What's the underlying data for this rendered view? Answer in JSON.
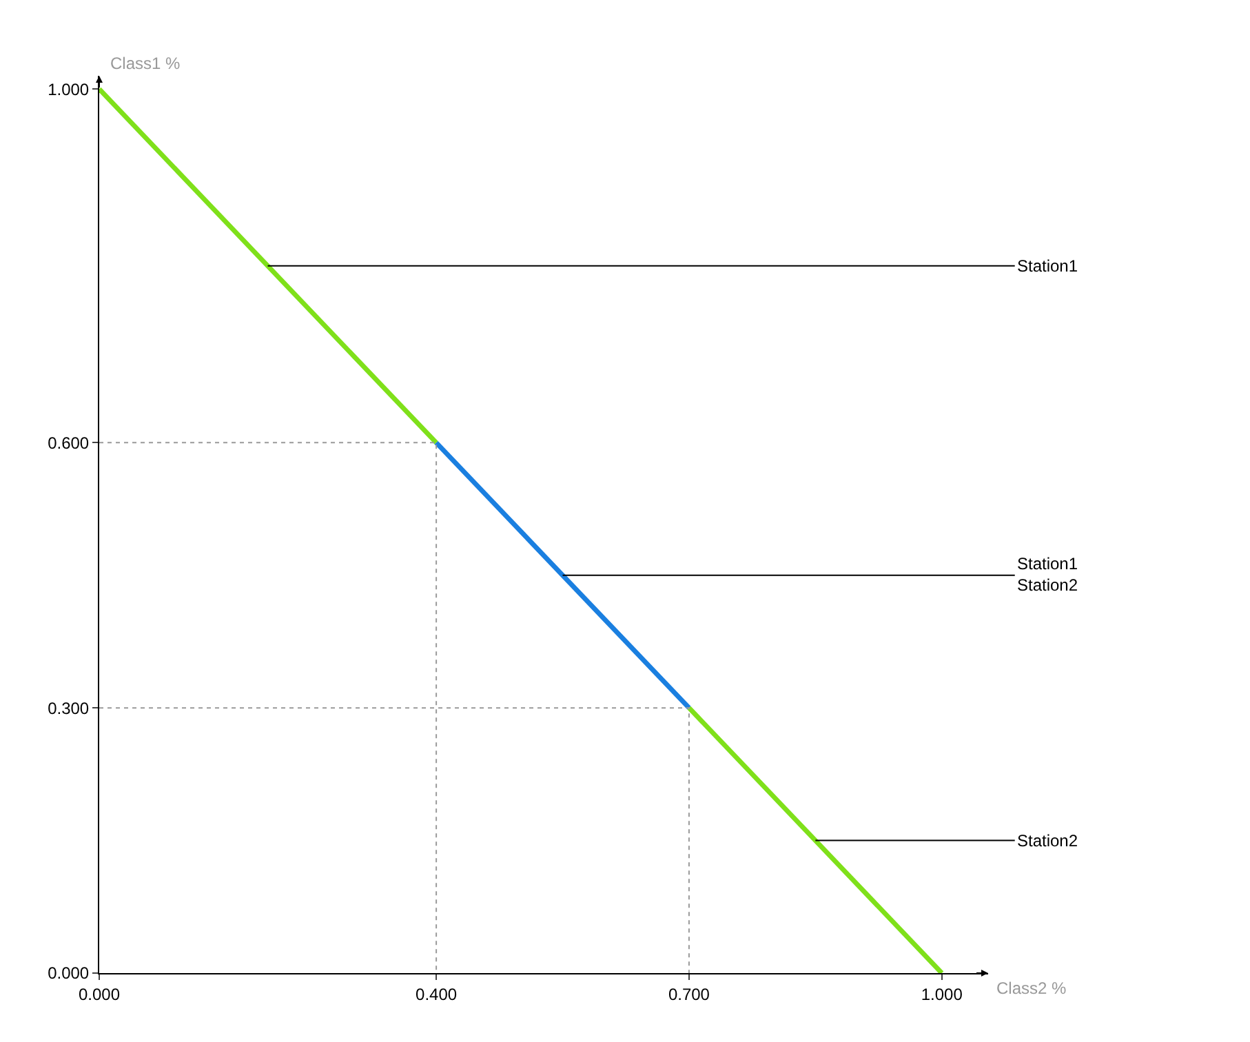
{
  "chart_data": {
    "type": "line",
    "xlabel": "Class2 %",
    "ylabel": "Class1 %",
    "xlim": [
      0,
      1.055
    ],
    "ylim": [
      0,
      1.015
    ],
    "xticks": [
      {
        "value": 0,
        "label": "0.000"
      },
      {
        "value": 0.4,
        "label": "0.400"
      },
      {
        "value": 0.7,
        "label": "0.700"
      },
      {
        "value": 1,
        "label": "1.000"
      }
    ],
    "yticks": [
      {
        "value": 0,
        "label": "0.000"
      },
      {
        "value": 0.3,
        "label": "0.300"
      },
      {
        "value": 0.6,
        "label": "0.600"
      },
      {
        "value": 1,
        "label": "1.000"
      }
    ],
    "marker": "none",
    "series": [
      {
        "color": "#7fe01a",
        "x": [
          0,
          0.4
        ],
        "values": [
          1,
          0.6
        ],
        "line_style": "solid"
      },
      {
        "color": "#1a7fe0",
        "x": [
          0.4,
          0.7
        ],
        "values": [
          0.6,
          0.3
        ],
        "line_style": "solid"
      },
      {
        "color": "#7fe01a",
        "x": [
          0.7,
          1
        ],
        "values": [
          0.3,
          0
        ],
        "line_style": "solid"
      },
      {
        "color": "#9a9a9a",
        "x": [
          0,
          0.4,
          0.4
        ],
        "values": [
          0.6,
          0.6,
          0
        ],
        "line_style": "dotted"
      },
      {
        "color": "#9a9a9a",
        "x": [
          0,
          0.7,
          0.7
        ],
        "values": [
          0.3,
          0.3,
          0
        ],
        "line_style": "dotted"
      }
    ],
    "annotations": [
      {
        "text": "Station1",
        "x": 0.2,
        "y": 0.8
      },
      {
        "text": "Station1\nStation2",
        "x": 0.55,
        "y": 0.45
      },
      {
        "text": "Station2",
        "x": 0.85,
        "y": 0.15
      }
    ]
  }
}
